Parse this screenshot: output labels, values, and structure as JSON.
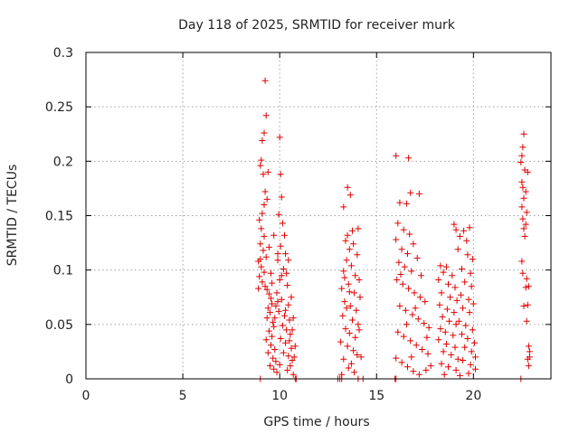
{
  "chart_data": {
    "type": "scatter",
    "title": "Day 118 of 2025, SRMTID for receiver murk",
    "xlabel": "GPS time / hours",
    "ylabel": "SRMTID / TECUs",
    "xlim": [
      0,
      24.0
    ],
    "ylim": [
      0,
      0.3
    ],
    "xticks": [
      0,
      5,
      10,
      15,
      20
    ],
    "xtick_labels": [
      "0",
      "5",
      "10",
      "15",
      "20"
    ],
    "yticks": [
      0,
      0.05,
      0.1,
      0.15,
      0.2,
      0.25,
      0.3
    ],
    "ytick_labels": [
      "0",
      "0.05",
      "0.1",
      "0.15",
      "0.2",
      "0.25",
      "0.3"
    ],
    "grid": true,
    "marker": "plus",
    "color": "#e00000",
    "series": [
      {
        "points": [
          [
            9.25,
            0.274
          ],
          [
            9.3,
            0.242
          ],
          [
            9.2,
            0.226
          ],
          [
            9.1,
            0.219
          ],
          [
            9.05,
            0.201
          ],
          [
            9.0,
            0.196
          ],
          [
            9.15,
            0.188
          ],
          [
            9.25,
            0.172
          ],
          [
            9.35,
            0.165
          ],
          [
            9.1,
            0.152
          ],
          [
            8.95,
            0.146
          ],
          [
            9.05,
            0.138
          ],
          [
            9.2,
            0.131
          ],
          [
            9.0,
            0.124
          ],
          [
            9.15,
            0.118
          ],
          [
            9.3,
            0.112
          ],
          [
            8.9,
            0.108
          ],
          [
            9.05,
            0.103
          ],
          [
            9.2,
            0.098
          ],
          [
            8.95,
            0.094
          ],
          [
            9.1,
            0.089
          ],
          [
            9.25,
            0.085
          ],
          [
            9.35,
            0.082
          ],
          [
            9.45,
            0.078
          ],
          [
            9.55,
            0.074
          ],
          [
            9.6,
            0.069
          ],
          [
            9.4,
            0.065
          ],
          [
            9.5,
            0.061
          ],
          [
            9.35,
            0.056
          ],
          [
            9.65,
            0.052
          ],
          [
            9.7,
            0.048
          ],
          [
            9.45,
            0.044
          ],
          [
            9.6,
            0.039
          ],
          [
            9.3,
            0.036
          ],
          [
            9.55,
            0.031
          ],
          [
            9.75,
            0.027
          ],
          [
            9.4,
            0.024
          ],
          [
            9.65,
            0.019
          ],
          [
            9.8,
            0.016
          ],
          [
            9.5,
            0.012
          ],
          [
            9.7,
            0.009
          ],
          [
            9.85,
            0.006
          ],
          [
            10.0,
            0.222
          ],
          [
            10.05,
            0.188
          ],
          [
            10.1,
            0.167
          ],
          [
            9.95,
            0.151
          ],
          [
            10.15,
            0.143
          ],
          [
            10.25,
            0.132
          ],
          [
            10.05,
            0.122
          ],
          [
            10.3,
            0.115
          ],
          [
            9.9,
            0.109
          ],
          [
            10.2,
            0.101
          ],
          [
            10.35,
            0.097
          ],
          [
            10.0,
            0.091
          ],
          [
            10.4,
            0.086
          ],
          [
            9.85,
            0.079
          ],
          [
            10.1,
            0.073
          ],
          [
            10.45,
            0.068
          ],
          [
            9.95,
            0.062
          ],
          [
            10.25,
            0.058
          ],
          [
            10.5,
            0.054
          ],
          [
            10.15,
            0.049
          ],
          [
            10.35,
            0.045
          ],
          [
            10.55,
            0.041
          ],
          [
            10.05,
            0.037
          ],
          [
            10.3,
            0.033
          ],
          [
            10.6,
            0.028
          ],
          [
            10.2,
            0.024
          ],
          [
            10.45,
            0.021
          ],
          [
            10.65,
            0.017
          ],
          [
            10.0,
            0.013
          ],
          [
            10.4,
            0.008
          ],
          [
            10.7,
            0.004
          ],
          [
            10.55,
            0.012
          ],
          [
            10.75,
            0.02
          ],
          [
            9.75,
            0.056
          ],
          [
            9.55,
            0.097
          ],
          [
            9.45,
            0.121
          ],
          [
            9.6,
            0.088
          ],
          [
            10.1,
            0.095
          ],
          [
            9.8,
            0.067
          ],
          [
            9.9,
            0.071
          ],
          [
            10.3,
            0.063
          ],
          [
            10.5,
            0.035
          ],
          [
            10.65,
            0.045
          ],
          [
            10.8,
            0.03
          ],
          [
            10.7,
            0.056
          ],
          [
            10.6,
            0.075
          ],
          [
            10.45,
            0.109
          ],
          [
            9.7,
            0.132
          ],
          [
            9.9,
            0.115
          ],
          [
            8.9,
            0.083
          ],
          [
            9.0,
            0.11
          ],
          [
            9.2,
            0.16
          ],
          [
            9.4,
            0.19
          ],
          [
            9.0,
            0.0
          ],
          [
            10.8,
            0.0
          ],
          [
            10.85,
            0.0
          ],
          [
            13.5,
            0.176
          ],
          [
            13.65,
            0.169
          ],
          [
            13.3,
            0.158
          ],
          [
            14.05,
            0.138
          ],
          [
            13.75,
            0.136
          ],
          [
            13.5,
            0.132
          ],
          [
            13.4,
            0.127
          ],
          [
            13.8,
            0.124
          ],
          [
            13.6,
            0.119
          ],
          [
            14.0,
            0.114
          ],
          [
            13.45,
            0.109
          ],
          [
            13.7,
            0.104
          ],
          [
            13.3,
            0.099
          ],
          [
            13.9,
            0.095
          ],
          [
            14.1,
            0.091
          ],
          [
            13.55,
            0.087
          ],
          [
            13.2,
            0.083
          ],
          [
            13.85,
            0.079
          ],
          [
            14.15,
            0.075
          ],
          [
            13.35,
            0.071
          ],
          [
            13.65,
            0.067
          ],
          [
            13.95,
            0.063
          ],
          [
            13.25,
            0.058
          ],
          [
            13.75,
            0.054
          ],
          [
            14.05,
            0.05
          ],
          [
            13.4,
            0.046
          ],
          [
            13.6,
            0.042
          ],
          [
            13.9,
            0.038
          ],
          [
            13.15,
            0.034
          ],
          [
            13.5,
            0.03
          ],
          [
            13.8,
            0.026
          ],
          [
            14.0,
            0.022
          ],
          [
            13.3,
            0.018
          ],
          [
            13.7,
            0.014
          ],
          [
            13.55,
            0.01
          ],
          [
            13.85,
            0.006
          ],
          [
            13.2,
            0.004
          ],
          [
            14.2,
            0.02
          ],
          [
            14.1,
            0.045
          ],
          [
            13.45,
            0.065
          ],
          [
            13.35,
            0.093
          ],
          [
            13.6,
            0.08
          ],
          [
            13.0,
            0.0
          ],
          [
            13.1,
            0.0
          ],
          [
            13.2,
            0.0
          ],
          [
            14.05,
            0.0
          ],
          [
            14.3,
            0.0
          ],
          [
            16.0,
            0.205
          ],
          [
            16.65,
            0.203
          ],
          [
            16.75,
            0.171
          ],
          [
            17.2,
            0.17
          ],
          [
            16.2,
            0.162
          ],
          [
            16.55,
            0.161
          ],
          [
            16.1,
            0.143
          ],
          [
            16.4,
            0.137
          ],
          [
            16.7,
            0.133
          ],
          [
            16.0,
            0.128
          ],
          [
            16.9,
            0.124
          ],
          [
            16.3,
            0.119
          ],
          [
            16.6,
            0.115
          ],
          [
            17.1,
            0.111
          ],
          [
            16.15,
            0.107
          ],
          [
            16.45,
            0.103
          ],
          [
            16.8,
            0.099
          ],
          [
            17.3,
            0.095
          ],
          [
            16.05,
            0.091
          ],
          [
            16.35,
            0.087
          ],
          [
            16.65,
            0.083
          ],
          [
            16.95,
            0.079
          ],
          [
            17.25,
            0.075
          ],
          [
            17.5,
            0.071
          ],
          [
            16.2,
            0.067
          ],
          [
            16.5,
            0.063
          ],
          [
            16.85,
            0.059
          ],
          [
            17.15,
            0.055
          ],
          [
            17.45,
            0.051
          ],
          [
            17.7,
            0.047
          ],
          [
            16.1,
            0.043
          ],
          [
            16.4,
            0.039
          ],
          [
            16.75,
            0.035
          ],
          [
            17.05,
            0.031
          ],
          [
            17.35,
            0.027
          ],
          [
            17.65,
            0.023
          ],
          [
            16.0,
            0.019
          ],
          [
            16.3,
            0.015
          ],
          [
            16.6,
            0.011
          ],
          [
            16.9,
            0.007
          ],
          [
            17.2,
            0.004
          ],
          [
            17.55,
            0.008
          ],
          [
            17.8,
            0.012
          ],
          [
            16.55,
            0.05
          ],
          [
            16.25,
            0.096
          ],
          [
            17.0,
            0.065
          ],
          [
            17.6,
            0.038
          ],
          [
            16.8,
            0.02
          ],
          [
            15.95,
            0.0
          ],
          [
            16.0,
            0.0
          ],
          [
            18.3,
            0.104
          ],
          [
            18.6,
            0.103
          ],
          [
            19.0,
            0.142
          ],
          [
            19.1,
            0.137
          ],
          [
            19.5,
            0.136
          ],
          [
            19.8,
            0.139
          ],
          [
            19.3,
            0.131
          ],
          [
            19.65,
            0.127
          ],
          [
            18.45,
            0.098
          ],
          [
            18.9,
            0.095
          ],
          [
            19.2,
            0.119
          ],
          [
            19.7,
            0.114
          ],
          [
            19.95,
            0.11
          ],
          [
            18.2,
            0.091
          ],
          [
            18.7,
            0.087
          ],
          [
            19.05,
            0.084
          ],
          [
            19.4,
            0.101
          ],
          [
            19.85,
            0.097
          ],
          [
            18.35,
            0.079
          ],
          [
            18.8,
            0.075
          ],
          [
            19.15,
            0.072
          ],
          [
            19.55,
            0.089
          ],
          [
            19.9,
            0.085
          ],
          [
            18.25,
            0.068
          ],
          [
            18.65,
            0.064
          ],
          [
            19.0,
            0.061
          ],
          [
            19.35,
            0.077
          ],
          [
            19.75,
            0.073
          ],
          [
            20.0,
            0.069
          ],
          [
            18.4,
            0.057
          ],
          [
            18.75,
            0.053
          ],
          [
            19.1,
            0.05
          ],
          [
            19.45,
            0.065
          ],
          [
            19.8,
            0.061
          ],
          [
            18.3,
            0.046
          ],
          [
            18.55,
            0.043
          ],
          [
            18.95,
            0.04
          ],
          [
            19.25,
            0.053
          ],
          [
            19.6,
            0.049
          ],
          [
            19.95,
            0.045
          ],
          [
            18.2,
            0.036
          ],
          [
            18.6,
            0.032
          ],
          [
            19.05,
            0.029
          ],
          [
            19.4,
            0.041
          ],
          [
            19.7,
            0.037
          ],
          [
            20.05,
            0.033
          ],
          [
            18.45,
            0.025
          ],
          [
            18.85,
            0.022
          ],
          [
            19.2,
            0.018
          ],
          [
            19.55,
            0.029
          ],
          [
            19.9,
            0.025
          ],
          [
            18.35,
            0.014
          ],
          [
            18.7,
            0.011
          ],
          [
            19.1,
            0.008
          ],
          [
            19.45,
            0.017
          ],
          [
            19.85,
            0.013
          ],
          [
            20.1,
            0.009
          ],
          [
            18.5,
            0.004
          ],
          [
            19.3,
            0.003
          ],
          [
            19.75,
            0.005
          ],
          [
            20.1,
            0.02
          ]
        ]
      },
      {
        "points": [
          [
            22.6,
            0.225
          ],
          [
            22.55,
            0.213
          ],
          [
            22.5,
            0.205
          ],
          [
            22.45,
            0.199
          ],
          [
            22.65,
            0.192
          ],
          [
            22.8,
            0.19
          ],
          [
            22.5,
            0.181
          ],
          [
            22.55,
            0.176
          ],
          [
            22.7,
            0.172
          ],
          [
            22.6,
            0.166
          ],
          [
            22.5,
            0.158
          ],
          [
            22.75,
            0.153
          ],
          [
            22.55,
            0.147
          ],
          [
            22.7,
            0.142
          ],
          [
            22.6,
            0.138
          ],
          [
            22.65,
            0.131
          ],
          [
            22.5,
            0.108
          ],
          [
            22.55,
            0.097
          ],
          [
            22.75,
            0.092
          ],
          [
            22.7,
            0.084
          ],
          [
            22.85,
            0.085
          ],
          [
            22.6,
            0.067
          ],
          [
            22.8,
            0.068
          ],
          [
            22.75,
            0.053
          ],
          [
            22.85,
            0.03
          ],
          [
            22.9,
            0.025
          ],
          [
            22.8,
            0.018
          ],
          [
            22.85,
            0.012
          ],
          [
            22.9,
            0.02
          ],
          [
            22.45,
            0.0
          ]
        ]
      }
    ]
  }
}
